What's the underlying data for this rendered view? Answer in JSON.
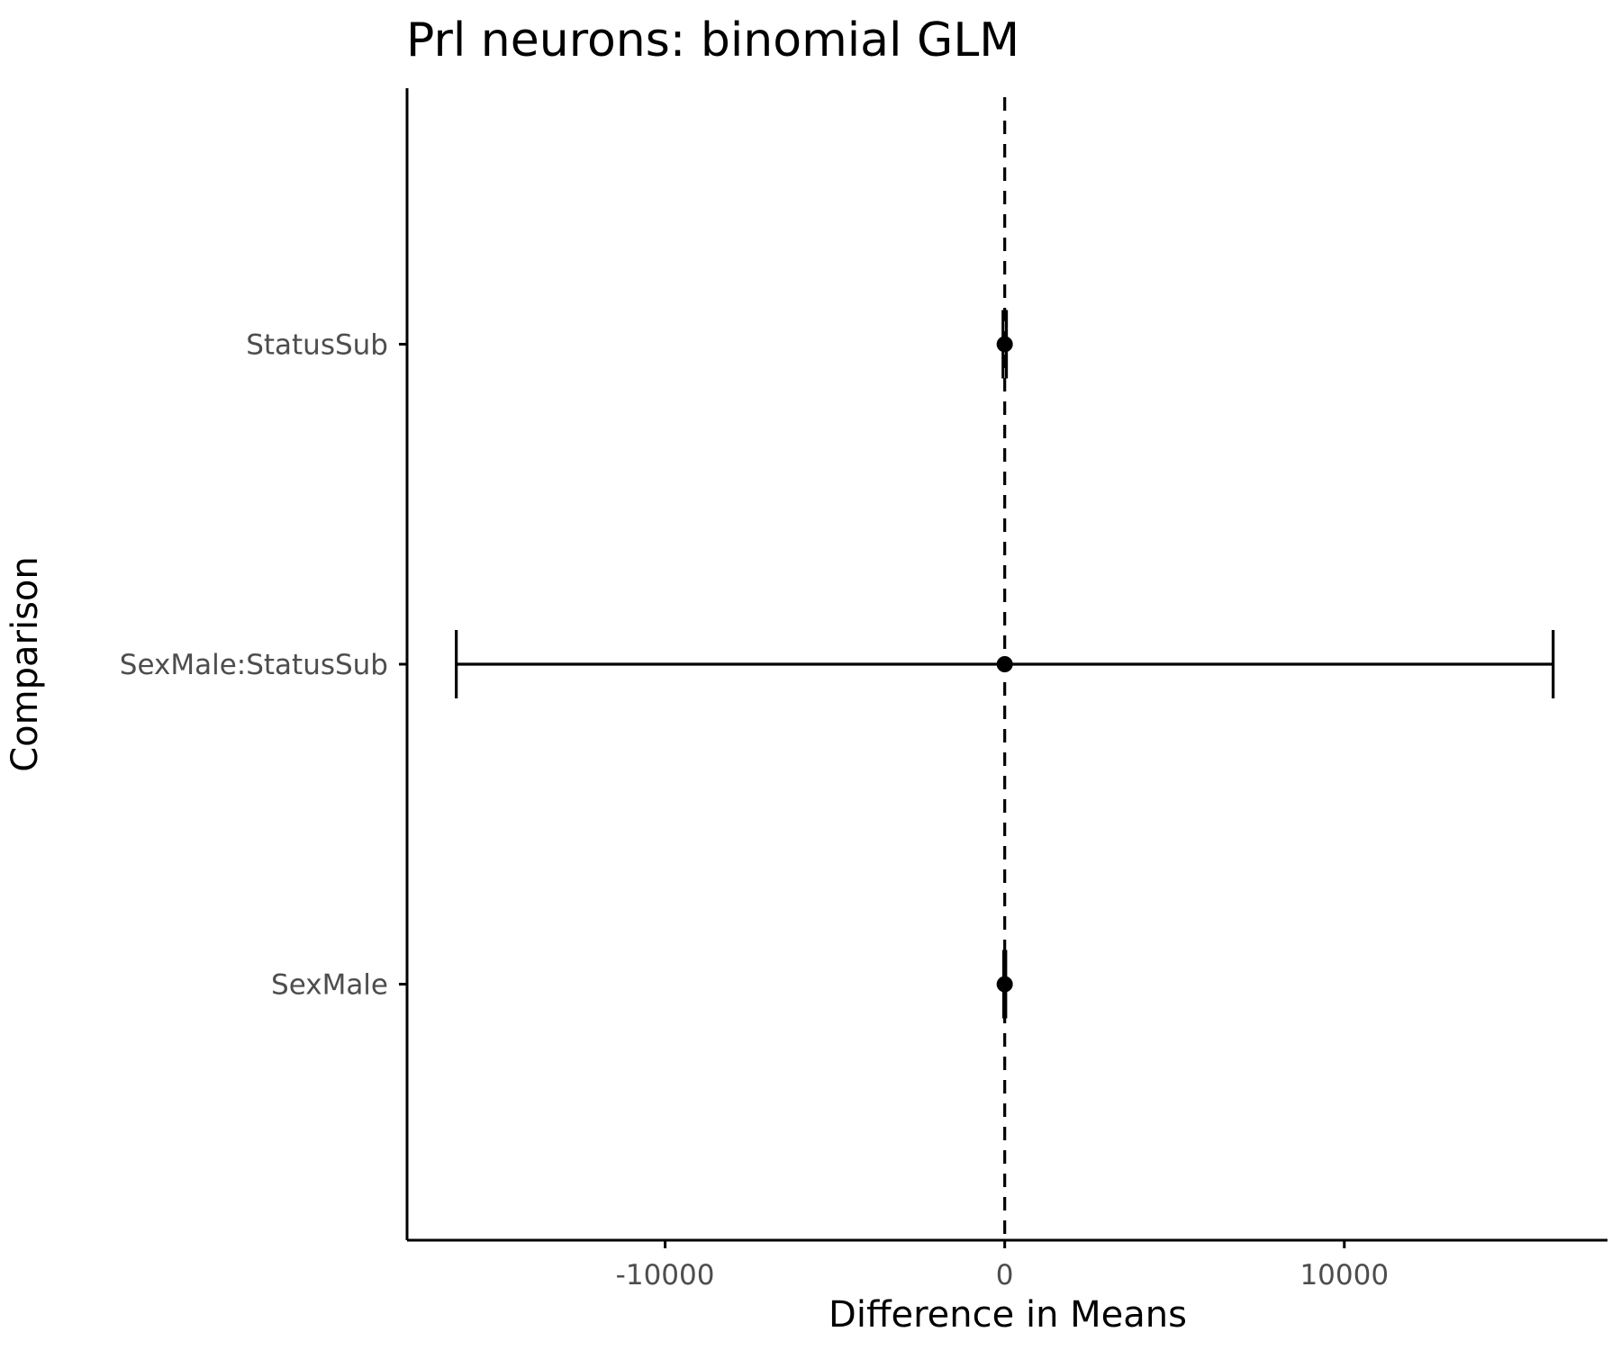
{
  "chart_data": {
    "type": "errorbar",
    "title": "Prl neurons: binomial GLM",
    "xlabel": "Difference in Means",
    "ylabel": "Comparison",
    "x_ticks": [
      -10000,
      0,
      10000
    ],
    "x_tick_labels": [
      "-10000",
      "0",
      "10000"
    ],
    "xlim": [
      -17600,
      17750
    ],
    "categories": [
      "StatusSub",
      "SexMale:StatusSub",
      "SexMale"
    ],
    "estimates": [
      0,
      0,
      0
    ],
    "lower": [
      -50,
      -16150,
      -30
    ],
    "upper": [
      50,
      16150,
      30
    ],
    "reference_line": 0,
    "reference_line_style": "dashed",
    "grid": false,
    "colors": {
      "marks": "#000000",
      "tick_text": "#4d4d4d",
      "axis": "#000000"
    }
  }
}
